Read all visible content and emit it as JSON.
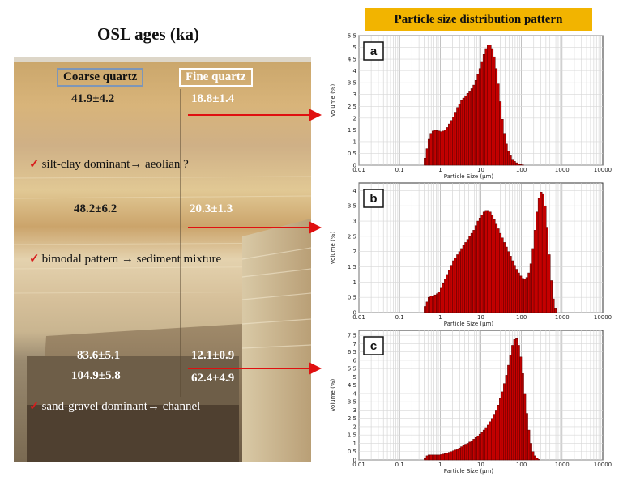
{
  "left_panel": {
    "title": "OSL ages (ka)",
    "headers": {
      "coarse": "Coarse quartz",
      "fine": "Fine quartz"
    },
    "ages": {
      "top_coarse": "41.9±4.2",
      "top_fine": "18.8±1.4",
      "mid_coarse": "48.2±6.2",
      "mid_fine": "20.3±1.3",
      "bot_coarse_1": "83.6±5.1",
      "bot_fine_1": "12.1±0.9",
      "bot_coarse_2": "104.9±5.8",
      "bot_fine_2": "62.4±4.9"
    },
    "notes": {
      "check": "✓",
      "n1": "silt-clay dominant→ aeolian ?",
      "n2": "bimodal pattern → sediment mixture",
      "n3": "sand-gravel dominant→ channel"
    }
  },
  "colors": {
    "bar": "#c40000",
    "bar_edge": "#5a0000",
    "arrow": "#e01010",
    "title_bg": "#f2b400"
  },
  "chart_data": {
    "title": "Particle size distribution pattern",
    "charts": [
      {
        "panel": "a",
        "type": "bar",
        "xlabel": "Particle Size (μm)",
        "ylabel": "Volume (%)",
        "x_scale": "log",
        "xlim": [
          0.01,
          10000
        ],
        "x_ticks": [
          "0.01",
          "0.1",
          "1",
          "10",
          "100",
          "1000",
          "10000"
        ],
        "ylim": [
          0,
          5.5
        ],
        "y_ticks": [
          "0",
          "0.5",
          "1",
          "1.5",
          "2",
          "2.5",
          "3",
          "3.5",
          "4",
          "4.5",
          "5",
          "5.5"
        ],
        "x": [
          0.4,
          0.45,
          0.5,
          0.56,
          0.63,
          0.71,
          0.8,
          0.9,
          1.0,
          1.12,
          1.26,
          1.41,
          1.58,
          1.78,
          2.0,
          2.24,
          2.52,
          2.83,
          3.17,
          3.56,
          4.0,
          4.49,
          5.04,
          5.66,
          6.35,
          7.13,
          8.0,
          8.98,
          10.1,
          11.3,
          12.7,
          14.3,
          16.0,
          18.0,
          20.2,
          22.6,
          25.4,
          28.5,
          32.0,
          35.9,
          40.3,
          45.3,
          50.8,
          57.0,
          64.0,
          71.8,
          80.6,
          90.5,
          101.6
        ],
        "values": [
          0.3,
          0.7,
          1.1,
          1.35,
          1.45,
          1.48,
          1.47,
          1.45,
          1.42,
          1.45,
          1.5,
          1.6,
          1.75,
          1.9,
          2.05,
          2.25,
          2.45,
          2.6,
          2.75,
          2.85,
          2.95,
          3.05,
          3.15,
          3.25,
          3.4,
          3.6,
          3.85,
          4.1,
          4.4,
          4.7,
          4.95,
          5.1,
          5.1,
          4.95,
          4.6,
          4.1,
          3.45,
          2.7,
          1.95,
          1.35,
          0.9,
          0.6,
          0.4,
          0.25,
          0.16,
          0.1,
          0.06,
          0.03,
          0.01
        ]
      },
      {
        "panel": "b",
        "type": "bar",
        "xlabel": "Particle Size (μm)",
        "ylabel": "Volume (%)",
        "x_scale": "log",
        "xlim": [
          0.01,
          10000
        ],
        "x_ticks": [
          "0.01",
          "0.1",
          "1",
          "10",
          "100",
          "1000",
          "10000"
        ],
        "ylim": [
          0,
          4.25
        ],
        "y_ticks": [
          "0",
          "0.5",
          "1",
          "1.5",
          "2",
          "2.5",
          "3",
          "3.5",
          "4"
        ],
        "x": [
          0.4,
          0.45,
          0.5,
          0.56,
          0.63,
          0.71,
          0.8,
          0.9,
          1.0,
          1.12,
          1.26,
          1.41,
          1.58,
          1.78,
          2.0,
          2.24,
          2.52,
          2.83,
          3.17,
          3.56,
          4.0,
          4.49,
          5.04,
          5.66,
          6.35,
          7.13,
          8.0,
          8.98,
          10.1,
          11.3,
          12.7,
          14.3,
          16.0,
          18.0,
          20.2,
          22.6,
          25.4,
          28.5,
          32.0,
          35.9,
          40.3,
          45.3,
          50.8,
          57.0,
          64.0,
          71.8,
          80.6,
          90.5,
          101.6,
          114.0,
          128.0,
          143.7,
          161.3,
          181.0,
          203.2,
          228.1,
          256.0,
          287.4,
          322.5,
          362.0,
          406.4,
          456.1,
          512.0,
          574.7,
          645.1
        ],
        "values": [
          0.2,
          0.35,
          0.5,
          0.55,
          0.55,
          0.58,
          0.62,
          0.68,
          0.8,
          0.95,
          1.1,
          1.25,
          1.4,
          1.55,
          1.7,
          1.8,
          1.9,
          2.0,
          2.1,
          2.2,
          2.3,
          2.4,
          2.5,
          2.6,
          2.7,
          2.85,
          3.0,
          3.1,
          3.2,
          3.3,
          3.35,
          3.35,
          3.3,
          3.2,
          3.05,
          2.9,
          2.75,
          2.6,
          2.45,
          2.3,
          2.15,
          2.0,
          1.85,
          1.7,
          1.55,
          1.42,
          1.3,
          1.2,
          1.12,
          1.1,
          1.15,
          1.3,
          1.6,
          2.1,
          2.7,
          3.3,
          3.75,
          3.95,
          3.9,
          3.5,
          2.8,
          1.9,
          1.05,
          0.45,
          0.15
        ]
      },
      {
        "panel": "c",
        "type": "bar",
        "xlabel": "Particle Size (μm)",
        "ylabel": "Volume (%)",
        "x_scale": "log",
        "xlim": [
          0.01,
          10000
        ],
        "x_ticks": [
          "0.01",
          "0.1",
          "1",
          "10",
          "100",
          "1000",
          "10000"
        ],
        "ylim": [
          0,
          7.8
        ],
        "y_ticks": [
          "0",
          "0.5",
          "1",
          "1.5",
          "2",
          "2.5",
          "3",
          "3.5",
          "4",
          "4.5",
          "5",
          "5.5",
          "6",
          "6.5",
          "7",
          "7.5"
        ],
        "x": [
          0.4,
          0.45,
          0.5,
          0.56,
          0.63,
          0.71,
          0.8,
          0.9,
          1.0,
          1.12,
          1.26,
          1.41,
          1.58,
          1.78,
          2.0,
          2.24,
          2.52,
          2.83,
          3.17,
          3.56,
          4.0,
          4.49,
          5.04,
          5.66,
          6.35,
          7.13,
          8.0,
          8.98,
          10.1,
          11.3,
          12.7,
          14.3,
          16.0,
          18.0,
          20.2,
          22.6,
          25.4,
          28.5,
          32.0,
          35.9,
          40.3,
          45.3,
          50.8,
          57.0,
          64.0,
          71.8,
          80.6,
          90.5,
          101.6,
          114.0,
          128.0,
          143.7,
          161.3,
          181.0,
          203.2,
          228.1,
          256.0
        ],
        "values": [
          0.1,
          0.25,
          0.3,
          0.3,
          0.3,
          0.3,
          0.3,
          0.3,
          0.32,
          0.35,
          0.38,
          0.42,
          0.46,
          0.5,
          0.55,
          0.6,
          0.65,
          0.72,
          0.8,
          0.88,
          0.95,
          1.0,
          1.08,
          1.15,
          1.25,
          1.35,
          1.45,
          1.55,
          1.65,
          1.8,
          1.95,
          2.1,
          2.3,
          2.5,
          2.75,
          3.0,
          3.3,
          3.7,
          4.1,
          4.6,
          5.1,
          5.7,
          6.3,
          6.9,
          7.25,
          7.3,
          6.9,
          6.2,
          5.2,
          4.0,
          2.8,
          1.8,
          1.0,
          0.5,
          0.25,
          0.1,
          0.03
        ]
      }
    ]
  }
}
